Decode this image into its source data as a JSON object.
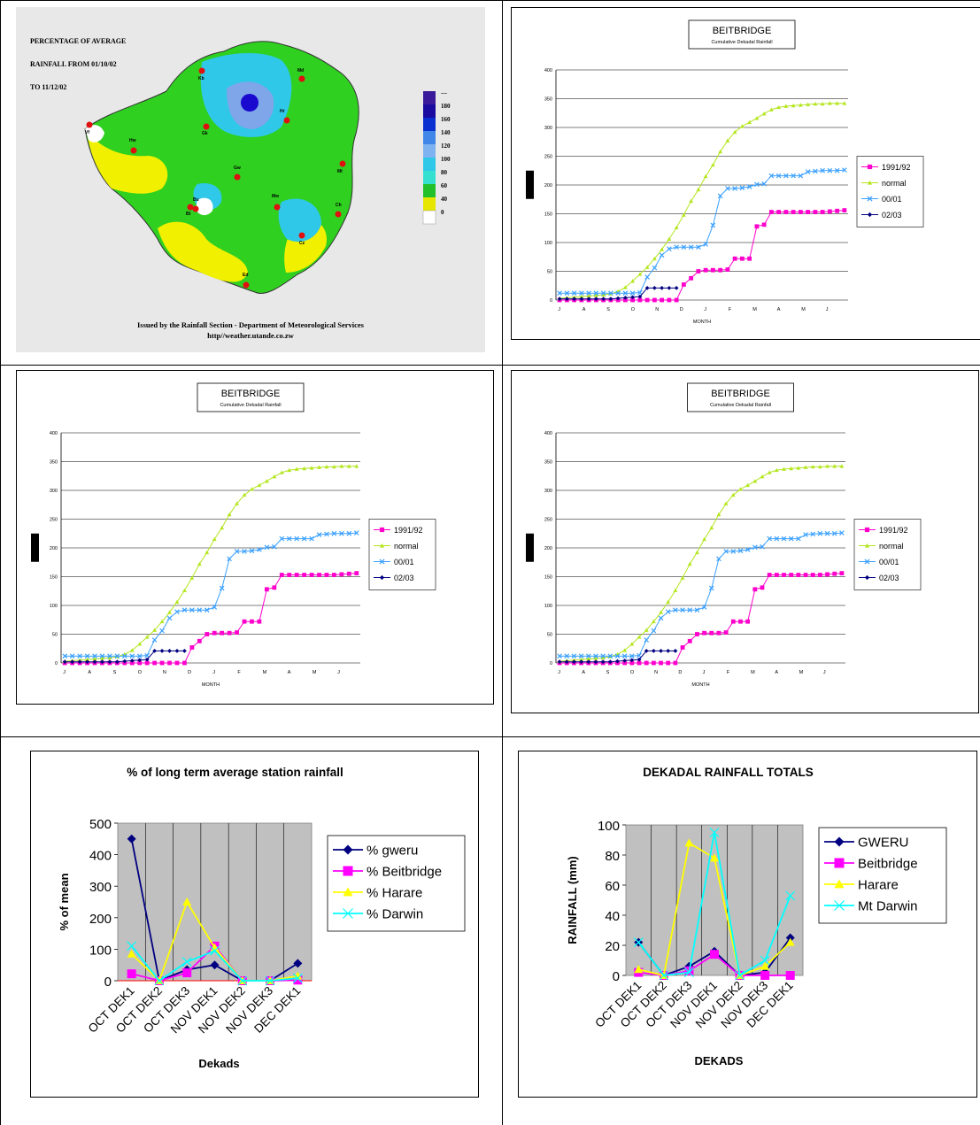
{
  "map": {
    "title_lines": [
      "PERCENTAGE OF AVERAGE",
      "RAINFALL FROM 01/10/02",
      "TO 11/12/02"
    ],
    "legend_values": [
      "---",
      "180",
      "160",
      "140",
      "120",
      "100",
      "80",
      "60",
      "40",
      "0"
    ],
    "legend_colors": [
      "#3a1a9a",
      "#1a0aa0",
      "#0a2fd0",
      "#3f86e8",
      "#7fb2f0",
      "#2fc8e8",
      "#35e0d0",
      "#22c02a",
      "#e6e600",
      "#ffffff"
    ],
    "station_labels": [
      "Vf",
      "Hw",
      "Kb",
      "Gk",
      "Md",
      "Hr",
      "Mt",
      "Mw",
      "Ch",
      "Cz",
      "Bu",
      "Ed",
      "Gw",
      "Bt"
    ],
    "footer_lines": [
      "Issued by the Rainfall Section - Department of Meteorological Services",
      "http//weather.utande.co.zw"
    ]
  },
  "chart_data": [
    {
      "type": "line",
      "title": "BEITBRIDGE",
      "subtitle": "Cumulative Dekadal Rainfall",
      "xlabel": "MONTH",
      "ylabel": "",
      "ylim": [
        0,
        400
      ],
      "yticks": [
        0,
        50,
        100,
        150,
        200,
        250,
        300,
        350,
        400
      ],
      "x_month_labels": [
        "J",
        "A",
        "S",
        "O",
        "N",
        "D",
        "J",
        "F",
        "M",
        "A",
        "M",
        "J"
      ],
      "legend_position": "right",
      "series": [
        {
          "name": "1991/92",
          "color": "#ff00cc",
          "marker": "square",
          "values": [
            0,
            0,
            0,
            0,
            0,
            0,
            0,
            0,
            0,
            0,
            0,
            0,
            0,
            0,
            0,
            0,
            0,
            27,
            38,
            50,
            52,
            52,
            52,
            53,
            72,
            72,
            72,
            128,
            131,
            153,
            153,
            153,
            153,
            153,
            153,
            153,
            153,
            154,
            155,
            156
          ]
        },
        {
          "name": "normal",
          "color": "#b4e61e",
          "marker": "triangle",
          "values": [
            3,
            4,
            5,
            6,
            7,
            8,
            9,
            11,
            15,
            22,
            33,
            45,
            57,
            72,
            88,
            106,
            126,
            148,
            172,
            192,
            215,
            235,
            258,
            277,
            292,
            302,
            309,
            316,
            324,
            331,
            335,
            337,
            338,
            339,
            340,
            341,
            341,
            342,
            342,
            342
          ]
        },
        {
          "name": "00/01",
          "color": "#3aa0ff",
          "marker": "x",
          "values": [
            12,
            12,
            12,
            12,
            12,
            12,
            12,
            12,
            12,
            12,
            12,
            13,
            40,
            56,
            78,
            89,
            92,
            92,
            92,
            92,
            97,
            130,
            181,
            194,
            194,
            195,
            197,
            201,
            202,
            216,
            216,
            216,
            216,
            216,
            223,
            224,
            225,
            225,
            225,
            226
          ]
        },
        {
          "name": "02/03",
          "color": "#000080",
          "marker": "diamond",
          "values": [
            2,
            2,
            2,
            2,
            2,
            2,
            2,
            2,
            3,
            4,
            5,
            6,
            21,
            21,
            21,
            21,
            21
          ]
        }
      ]
    },
    {
      "type": "line",
      "title": "BEITBRIDGE",
      "subtitle": "Cumulative Dekadal Rainfall",
      "xlabel": "MONTH",
      "ylabel": "",
      "ylim": [
        0,
        400
      ],
      "yticks": [
        0,
        50,
        100,
        150,
        200,
        250,
        300,
        350,
        400
      ],
      "x_month_labels": [
        "J",
        "A",
        "S",
        "O",
        "N",
        "D",
        "J",
        "F",
        "M",
        "A",
        "M",
        "J"
      ],
      "legend_position": "right",
      "series": [
        {
          "name": "1991/92",
          "color": "#ff00cc",
          "marker": "square",
          "values": [
            0,
            0,
            0,
            0,
            0,
            0,
            0,
            0,
            0,
            0,
            0,
            0,
            0,
            0,
            0,
            0,
            0,
            27,
            38,
            50,
            52,
            52,
            52,
            53,
            72,
            72,
            72,
            128,
            131,
            153,
            153,
            153,
            153,
            153,
            153,
            153,
            153,
            154,
            155,
            156
          ]
        },
        {
          "name": "normal",
          "color": "#b4e61e",
          "marker": "triangle",
          "values": [
            3,
            4,
            5,
            6,
            7,
            8,
            9,
            11,
            15,
            22,
            33,
            45,
            57,
            72,
            88,
            106,
            126,
            148,
            172,
            192,
            215,
            235,
            258,
            277,
            292,
            302,
            309,
            316,
            324,
            331,
            335,
            337,
            338,
            339,
            340,
            341,
            341,
            342,
            342,
            342
          ]
        },
        {
          "name": "00/01",
          "color": "#3aa0ff",
          "marker": "x",
          "values": [
            12,
            12,
            12,
            12,
            12,
            12,
            12,
            12,
            12,
            12,
            12,
            13,
            40,
            56,
            78,
            89,
            92,
            92,
            92,
            92,
            97,
            130,
            181,
            194,
            194,
            195,
            197,
            201,
            202,
            216,
            216,
            216,
            216,
            216,
            223,
            224,
            225,
            225,
            225,
            226
          ]
        },
        {
          "name": "02/03",
          "color": "#000080",
          "marker": "diamond",
          "values": [
            2,
            2,
            2,
            2,
            2,
            2,
            2,
            2,
            3,
            4,
            5,
            6,
            21,
            21,
            21,
            21,
            21
          ]
        }
      ]
    },
    {
      "type": "line",
      "title": "BEITBRIDGE",
      "subtitle": "Cumulative Dekadal Rainfall",
      "xlabel": "MONTH",
      "ylabel": "",
      "ylim": [
        0,
        400
      ],
      "yticks": [
        0,
        50,
        100,
        150,
        200,
        250,
        300,
        350,
        400
      ],
      "x_month_labels": [
        "J",
        "A",
        "S",
        "O",
        "N",
        "D",
        "J",
        "F",
        "M",
        "A",
        "M",
        "J"
      ],
      "legend_position": "right",
      "series": [
        {
          "name": "1991/92",
          "color": "#ff00cc",
          "marker": "square",
          "values": [
            0,
            0,
            0,
            0,
            0,
            0,
            0,
            0,
            0,
            0,
            0,
            0,
            0,
            0,
            0,
            0,
            0,
            27,
            38,
            50,
            52,
            52,
            52,
            53,
            72,
            72,
            72,
            128,
            131,
            153,
            153,
            153,
            153,
            153,
            153,
            153,
            153,
            154,
            155,
            156
          ]
        },
        {
          "name": "normal",
          "color": "#b4e61e",
          "marker": "triangle",
          "values": [
            3,
            4,
            5,
            6,
            7,
            8,
            9,
            11,
            15,
            22,
            33,
            45,
            57,
            72,
            88,
            106,
            126,
            148,
            172,
            192,
            215,
            235,
            258,
            277,
            292,
            302,
            309,
            316,
            324,
            331,
            335,
            337,
            338,
            339,
            340,
            341,
            341,
            342,
            342,
            342
          ]
        },
        {
          "name": "00/01",
          "color": "#3aa0ff",
          "marker": "x",
          "values": [
            12,
            12,
            12,
            12,
            12,
            12,
            12,
            12,
            12,
            12,
            12,
            13,
            40,
            56,
            78,
            89,
            92,
            92,
            92,
            92,
            97,
            130,
            181,
            194,
            194,
            195,
            197,
            201,
            202,
            216,
            216,
            216,
            216,
            216,
            223,
            224,
            225,
            225,
            225,
            226
          ]
        },
        {
          "name": "02/03",
          "color": "#000080",
          "marker": "diamond",
          "values": [
            2,
            2,
            2,
            2,
            2,
            2,
            2,
            2,
            3,
            4,
            5,
            6,
            21,
            21,
            21,
            21,
            21
          ]
        }
      ]
    },
    {
      "type": "line",
      "title": "% of long term average station rainfall",
      "xlabel": "Dekads",
      "ylabel": "% of mean",
      "ylim": [
        0,
        500
      ],
      "yticks": [
        0,
        100,
        200,
        300,
        400,
        500
      ],
      "categories": [
        "OCT DEK1",
        "OCT DEK2",
        "OCT DEK3",
        "NOV DEK1",
        "NOV DEK2",
        "NOV DEK3",
        "DEC DEK1"
      ],
      "legend_position": "right",
      "series": [
        {
          "name": "% gweru",
          "color": "#000080",
          "marker": "diamond",
          "values": [
            450,
            0,
            35,
            50,
            0,
            0,
            55
          ]
        },
        {
          "name": "% Beitbridge",
          "color": "#ff00ff",
          "marker": "square",
          "values": [
            22,
            0,
            25,
            110,
            0,
            0,
            2
          ]
        },
        {
          "name": "% Harare",
          "color": "#ffff00",
          "marker": "triangle",
          "values": [
            85,
            0,
            250,
            105,
            0,
            0,
            15
          ]
        },
        {
          "name": "% Darwin",
          "color": "#00ffff",
          "marker": "x",
          "values": [
            110,
            0,
            60,
            95,
            0,
            0,
            8
          ]
        }
      ]
    },
    {
      "type": "line",
      "title": "DEKADAL RAINFALL TOTALS",
      "xlabel": "DEKADS",
      "ylabel": "RAINFALL (mm)",
      "ylim": [
        0,
        100
      ],
      "yticks": [
        0,
        20,
        40,
        60,
        80,
        100
      ],
      "categories": [
        "OCT DEK1",
        "OCT DEK2",
        "OCT DEK3",
        "NOV DEK1",
        "NOV DEK2",
        "NOV DEK3",
        "DEC DEK1"
      ],
      "legend_position": "right",
      "series": [
        {
          "name": "GWERU",
          "color": "#000080",
          "marker": "diamond",
          "values": [
            22,
            0,
            6,
            16,
            0,
            2,
            25
          ]
        },
        {
          "name": "Beitbridge",
          "color": "#ff00ff",
          "marker": "square",
          "values": [
            2,
            0,
            3,
            14,
            0,
            0,
            0
          ]
        },
        {
          "name": "Harare",
          "color": "#ffff00",
          "marker": "triangle",
          "values": [
            4,
            0,
            88,
            78,
            0,
            6,
            22
          ]
        },
        {
          "name": "Mt Darwin",
          "color": "#00ffff",
          "marker": "x",
          "values": [
            22,
            0,
            2,
            95,
            0,
            10,
            53
          ]
        }
      ]
    }
  ]
}
